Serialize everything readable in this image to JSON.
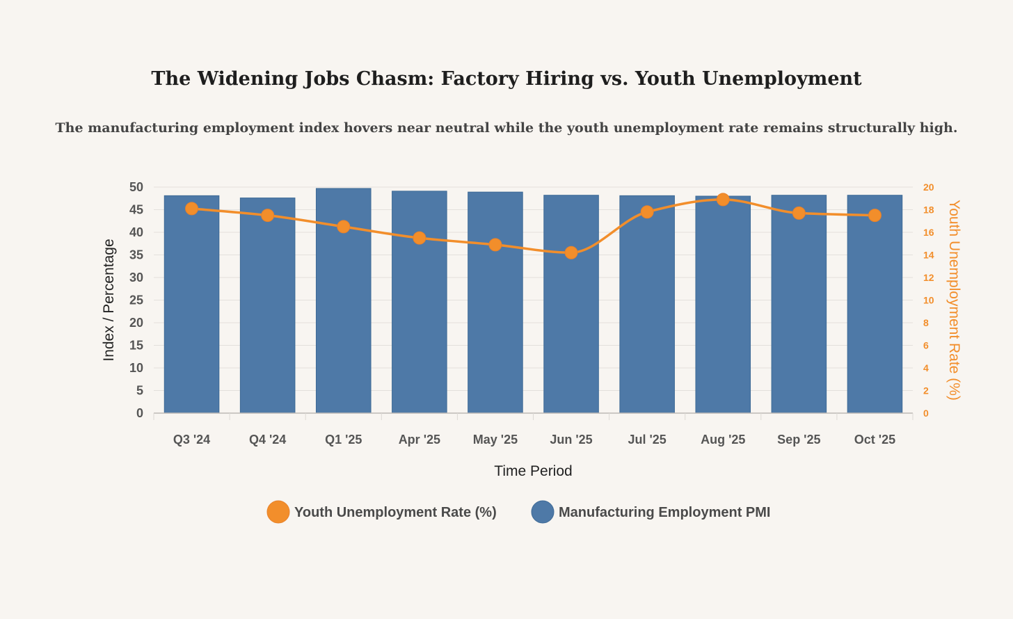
{
  "title": "The Widening Jobs Chasm: Factory Hiring vs. Youth Unemployment",
  "subtitle": "The manufacturing employment index hovers near neutral while the youth unemployment rate remains structurally high.",
  "colors": {
    "bar": "#4e79a7",
    "line": "#f28e2b",
    "background": "#f8f5f1",
    "grid": "#e3e0dc",
    "tick_text": "#555555",
    "axis_title": "#222222"
  },
  "chart_data": {
    "type": "bar",
    "categories": [
      "Q3 '24",
      "Q4 '24",
      "Q1 '25",
      "Apr '25",
      "May '25",
      "Jun '25",
      "Jul '25",
      "Aug '25",
      "Sep '25",
      "Oct '25"
    ],
    "series": [
      {
        "name": "Manufacturing Employment PMI",
        "type": "bar",
        "axis": "left",
        "color": "#4e79a7",
        "values": [
          48.1,
          47.6,
          49.7,
          49.1,
          48.9,
          48.2,
          48.1,
          48.0,
          48.2,
          48.2
        ]
      },
      {
        "name": "Youth Unemployment Rate (%)",
        "type": "line",
        "axis": "right",
        "color": "#f28e2b",
        "values": [
          18.1,
          17.5,
          16.5,
          15.5,
          14.9,
          14.2,
          17.8,
          18.9,
          17.7,
          17.5
        ]
      }
    ],
    "xlabel": "Time Period",
    "ylabel": "Index / Percentage",
    "y2label": "Youth Unemployment Rate (%)",
    "ylim": [
      0,
      50
    ],
    "y2lim": [
      0,
      20
    ],
    "yticks": [
      "0",
      "5",
      "10",
      "15",
      "20",
      "25",
      "30",
      "35",
      "40",
      "45",
      "50"
    ],
    "y2ticks": [
      "0",
      "2",
      "4",
      "6",
      "8",
      "10",
      "12",
      "14",
      "16",
      "18",
      "20"
    ],
    "grid": true,
    "legend": "bottom",
    "legend_entries": [
      "Youth Unemployment Rate (%)",
      "Manufacturing Employment PMI"
    ]
  }
}
